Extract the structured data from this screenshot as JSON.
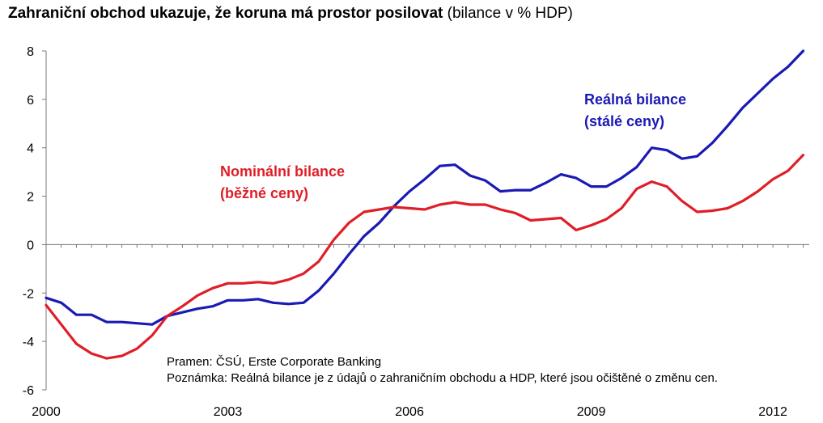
{
  "title": {
    "main": "Zahraniční obchod ukazuje, že koruna má prostor posilovat",
    "unit": "(bilance v % HDP)"
  },
  "chart_data": {
    "type": "line",
    "title": "Zahraniční obchod ukazuje, že koruna má prostor posilovat (bilance v % HDP)",
    "xlabel": "",
    "ylabel": "",
    "xlim": [
      2000,
      2012.6
    ],
    "ylim": [
      -6,
      8
    ],
    "x_ticks": [
      {
        "value": 2000,
        "label": "2000"
      },
      {
        "value": 2003,
        "label": "2003"
      },
      {
        "value": 2006,
        "label": "2006"
      },
      {
        "value": 2009,
        "label": "2009"
      },
      {
        "value": 2012,
        "label": "2012"
      }
    ],
    "y_ticks": [
      {
        "value": 8,
        "label": "8"
      },
      {
        "value": 6,
        "label": "6"
      },
      {
        "value": 4,
        "label": "4"
      },
      {
        "value": 2,
        "label": "2"
      },
      {
        "value": 0,
        "label": "0"
      },
      {
        "value": -2,
        "label": "-2"
      },
      {
        "value": -4,
        "label": "-4"
      },
      {
        "value": -6,
        "label": "-6"
      }
    ],
    "x": [
      2000.0,
      2000.25,
      2000.5,
      2000.75,
      2001.0,
      2001.25,
      2001.5,
      2001.75,
      2002.0,
      2002.25,
      2002.5,
      2002.75,
      2003.0,
      2003.25,
      2003.5,
      2003.75,
      2004.0,
      2004.25,
      2004.5,
      2004.75,
      2005.0,
      2005.25,
      2005.5,
      2005.75,
      2006.0,
      2006.25,
      2006.5,
      2006.75,
      2007.0,
      2007.25,
      2007.5,
      2007.75,
      2008.0,
      2008.25,
      2008.5,
      2008.75,
      2009.0,
      2009.25,
      2009.5,
      2009.75,
      2010.0,
      2010.25,
      2010.5,
      2010.75,
      2011.0,
      2011.25,
      2011.5,
      2011.75,
      2012.0,
      2012.25,
      2012.5
    ],
    "series": [
      {
        "name": "Reálná bilance (stálé ceny)",
        "color": "#1a1ab4",
        "values": [
          -2.2,
          -2.4,
          -2.9,
          -2.9,
          -3.2,
          -3.2,
          -3.25,
          -3.3,
          -2.95,
          -2.8,
          -2.65,
          -2.55,
          -2.3,
          -2.3,
          -2.25,
          -2.4,
          -2.45,
          -2.4,
          -1.9,
          -1.2,
          -0.4,
          0.35,
          0.9,
          1.6,
          2.2,
          2.7,
          3.25,
          3.3,
          2.85,
          2.65,
          2.2,
          2.25,
          2.25,
          2.55,
          2.9,
          2.75,
          2.4,
          2.4,
          2.75,
          3.2,
          4.0,
          3.9,
          3.55,
          3.65,
          4.2,
          4.9,
          5.65,
          6.25,
          6.85,
          7.35,
          8.0
        ]
      },
      {
        "name": "Nominální bilance (běžné ceny)",
        "color": "#e01e28",
        "values": [
          -2.5,
          -3.3,
          -4.1,
          -4.5,
          -4.7,
          -4.6,
          -4.3,
          -3.75,
          -2.95,
          -2.55,
          -2.1,
          -1.8,
          -1.6,
          -1.6,
          -1.55,
          -1.6,
          -1.45,
          -1.2,
          -0.7,
          0.2,
          0.9,
          1.35,
          1.45,
          1.55,
          1.5,
          1.45,
          1.65,
          1.75,
          1.65,
          1.65,
          1.45,
          1.3,
          1.0,
          1.05,
          1.1,
          0.6,
          0.8,
          1.05,
          1.5,
          2.3,
          2.6,
          2.4,
          1.8,
          1.35,
          1.4,
          1.5,
          1.8,
          2.2,
          2.7,
          3.05,
          3.7
        ]
      }
    ],
    "annotations": {
      "real": {
        "line1": "Reálná bilance",
        "line2": "(stálé ceny)"
      },
      "nominal": {
        "line1": "Nominální bilance",
        "line2": "(běžné ceny)"
      }
    },
    "notes": {
      "source": "Pramen: ČSÚ, Erste Corporate Banking",
      "remark": "Poznámka: Reálná bilance je z údajů o zahraničním obchodu a HDP, které jsou očištěné o změnu cen."
    },
    "grid": false,
    "legend": "none"
  }
}
